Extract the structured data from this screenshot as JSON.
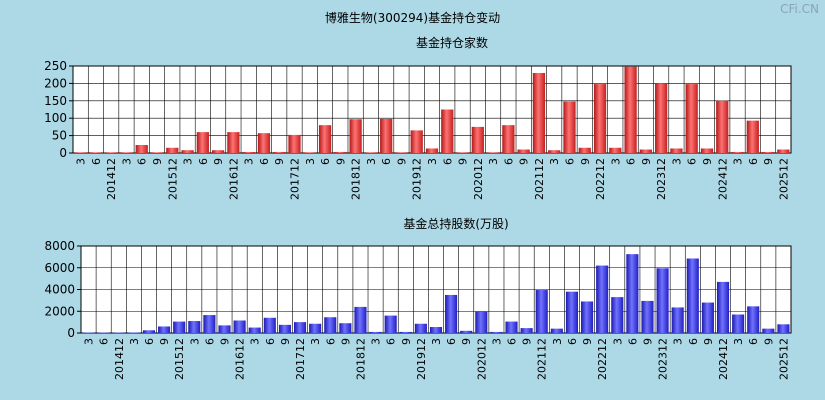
{
  "title": "博雅生物(300294)基金持仓变动",
  "watermark": "CFi.CN",
  "chart_data": [
    {
      "type": "bar",
      "title": "基金持仓家数",
      "ylim": [
        0,
        250
      ],
      "yticks": [
        0,
        50,
        100,
        150,
        200,
        250
      ],
      "grid": true,
      "color": "#e03a3a",
      "x_labels": [
        "3",
        "6",
        "201412",
        "3",
        "6",
        "9",
        "201512",
        "3",
        "6",
        "9",
        "201612",
        "3",
        "6",
        "9",
        "201712",
        "3",
        "6",
        "9",
        "201812",
        "3",
        "6",
        "9",
        "201912",
        "3",
        "6",
        "9",
        "202012",
        "3",
        "6",
        "9",
        "202112",
        "3",
        "6",
        "9",
        "202212",
        "3",
        "6",
        "9",
        "202312",
        "3",
        "6",
        "9",
        "202412",
        "3",
        "6",
        "9",
        "202512"
      ],
      "values": [
        2,
        2,
        2,
        2,
        23,
        2,
        15,
        8,
        60,
        8,
        60,
        3,
        57,
        3,
        52,
        2,
        80,
        3,
        97,
        2,
        98,
        2,
        65,
        13,
        125,
        2,
        75,
        2,
        80,
        10,
        230,
        8,
        148,
        15,
        198,
        15,
        248,
        10,
        200,
        13,
        198,
        13,
        150,
        3,
        93,
        3,
        10
      ]
    },
    {
      "type": "bar",
      "title": "基金总持股数(万股)",
      "ylim": [
        0,
        8000
      ],
      "yticks": [
        0,
        2000,
        4000,
        6000,
        8000
      ],
      "grid": true,
      "color": "#3636e0",
      "x_labels": [
        "3",
        "6",
        "201412",
        "3",
        "6",
        "9",
        "201512",
        "3",
        "6",
        "9",
        "201612",
        "3",
        "6",
        "9",
        "201712",
        "3",
        "6",
        "9",
        "201812",
        "3",
        "6",
        "9",
        "201912",
        "3",
        "6",
        "9",
        "202012",
        "3",
        "6",
        "9",
        "202112",
        "3",
        "6",
        "9",
        "202212",
        "3",
        "6",
        "9",
        "202312",
        "3",
        "6",
        "9",
        "202412",
        "3",
        "6",
        "9",
        "202512"
      ],
      "values": [
        40,
        40,
        40,
        40,
        250,
        600,
        1050,
        1100,
        1650,
        700,
        1150,
        500,
        1400,
        750,
        1000,
        850,
        1450,
        900,
        2400,
        100,
        1600,
        100,
        850,
        550,
        3500,
        200,
        1950,
        100,
        1050,
        450,
        3950,
        400,
        3800,
        2900,
        6200,
        3300,
        7250,
        2950,
        5950,
        2350,
        6850,
        2800,
        4700,
        1700,
        2450,
        400,
        800
      ]
    }
  ]
}
